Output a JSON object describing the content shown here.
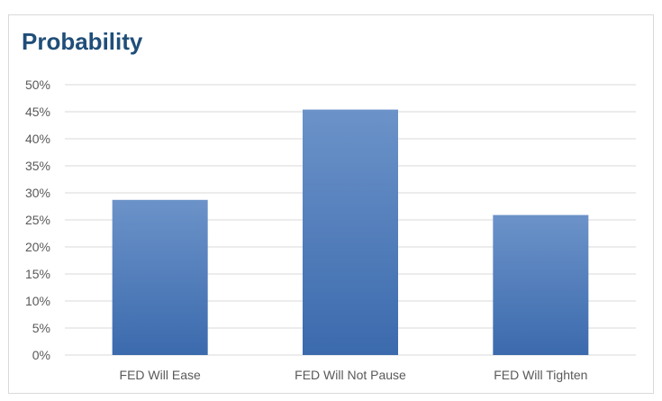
{
  "chart_data": {
    "type": "bar",
    "title": "Probability",
    "xlabel": "",
    "ylabel": "",
    "categories": [
      "FED Will Ease",
      "FED Will Not Pause",
      "FED Will Tighten"
    ],
    "values": [
      28.7,
      45.4,
      25.9
    ],
    "ylim": [
      0,
      50
    ],
    "yticks": [
      0,
      5,
      10,
      15,
      20,
      25,
      30,
      35,
      40,
      45,
      50
    ],
    "ytick_labels": [
      "0%",
      "5%",
      "10%",
      "15%",
      "20%",
      "25%",
      "30%",
      "35%",
      "40%",
      "45%",
      "50%"
    ],
    "grid": true,
    "legend": "none",
    "colors": {
      "bar_top": "#6c93c9",
      "bar_bottom": "#3b6aad",
      "grid": "#d9d9d9",
      "title": "#1f4e79"
    }
  }
}
